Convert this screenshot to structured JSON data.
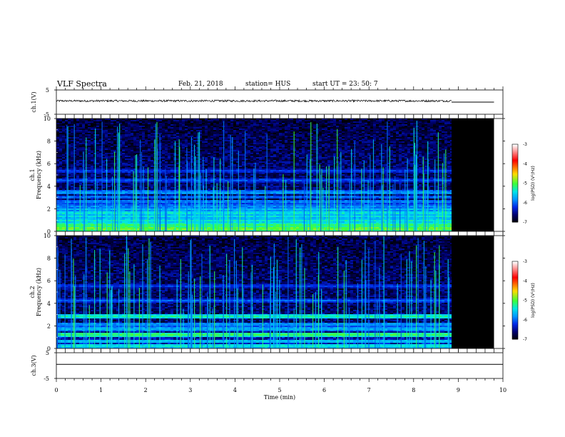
{
  "header": {
    "title": "VLF Spectra",
    "date": "Feb. 21, 2018",
    "station": "station= HUS",
    "start": "start  UT =   23: 50: 7"
  },
  "colorbar": {
    "label": "log(PSD) (V²/Hz)",
    "ticks": [
      "-3",
      "-4",
      "-5",
      "-6",
      "-7"
    ],
    "colors": [
      "#ffffff",
      "#ff0000",
      "#ffd000",
      "#00ff00",
      "#00e0ff",
      "#0060ff",
      "#0000a0",
      "#000000"
    ]
  },
  "chart_data": [
    {
      "type": "line",
      "panel": "ch1-waveform",
      "ylabel": "ch.1(V)",
      "yticks": [
        "5",
        "-5"
      ],
      "ylim": [
        -5,
        5
      ],
      "xlim": [
        0,
        10
      ],
      "series": [
        {
          "x": [
            0,
            8.85
          ],
          "y": [
            0.5,
            0.5
          ],
          "style": "noisy",
          "amplitude": 0.4
        },
        {
          "x": [
            8.85,
            9.8
          ],
          "y": [
            0.0,
            0.0
          ]
        }
      ]
    },
    {
      "type": "heatmap",
      "panel": "ch1-spectrogram",
      "ylabel": "ch.1",
      "ylabel2": "Frequency (kHz)",
      "yticks": [
        "10",
        "8",
        "6",
        "4",
        "2",
        "0"
      ],
      "xlim": [
        0,
        10
      ],
      "ylim": [
        0,
        10
      ],
      "data_end_min": 8.85,
      "blank_end_min": 9.8,
      "bands": [
        {
          "f": 0.3,
          "level": -4.8
        },
        {
          "f": 0.6,
          "level": -5.0
        },
        {
          "f": 1.0,
          "level": -5.3
        },
        {
          "f": 1.4,
          "level": -5.4
        },
        {
          "f": 1.7,
          "level": -5.3
        },
        {
          "f": 2.0,
          "level": -5.6
        },
        {
          "f": 2.3,
          "level": -5.8
        },
        {
          "f": 2.7,
          "level": -5.8
        },
        {
          "f": 3.1,
          "level": -5.9
        },
        {
          "f": 3.5,
          "level": -5.7
        },
        {
          "f": 4.6,
          "level": -6.0
        },
        {
          "f": 5.4,
          "level": -6.1
        }
      ]
    },
    {
      "type": "heatmap",
      "panel": "ch2-spectrogram",
      "ylabel": "ch.2",
      "ylabel2": "Frequency (kHz)",
      "yticks": [
        "10",
        "8",
        "6",
        "4",
        "2",
        "0"
      ],
      "xlim": [
        0,
        10
      ],
      "ylim": [
        0,
        10
      ],
      "data_end_min": 8.85,
      "blank_end_min": 9.8,
      "bands": [
        {
          "f": 0.3,
          "level": -5.3
        },
        {
          "f": 0.7,
          "level": -5.5
        },
        {
          "f": 1.3,
          "level": -5.0
        },
        {
          "f": 1.8,
          "level": -5.6
        },
        {
          "f": 2.2,
          "level": -5.7
        },
        {
          "f": 2.9,
          "level": -5.2
        },
        {
          "f": 4.3,
          "level": -6.0
        },
        {
          "f": 5.6,
          "level": -6.1
        }
      ]
    },
    {
      "type": "line",
      "panel": "ch3-waveform",
      "ylabel": "ch.3(V)",
      "yticks": [
        "5",
        "-5"
      ],
      "ylim": [
        -5,
        5
      ],
      "xlim": [
        0,
        10
      ],
      "xlabel": "Time (min)",
      "xticks": [
        "0",
        "1",
        "2",
        "3",
        "4",
        "5",
        "6",
        "7",
        "8",
        "9",
        "10"
      ],
      "series": [
        {
          "x": [
            0,
            10
          ],
          "y": [
            0.5,
            0.5
          ]
        }
      ]
    }
  ]
}
